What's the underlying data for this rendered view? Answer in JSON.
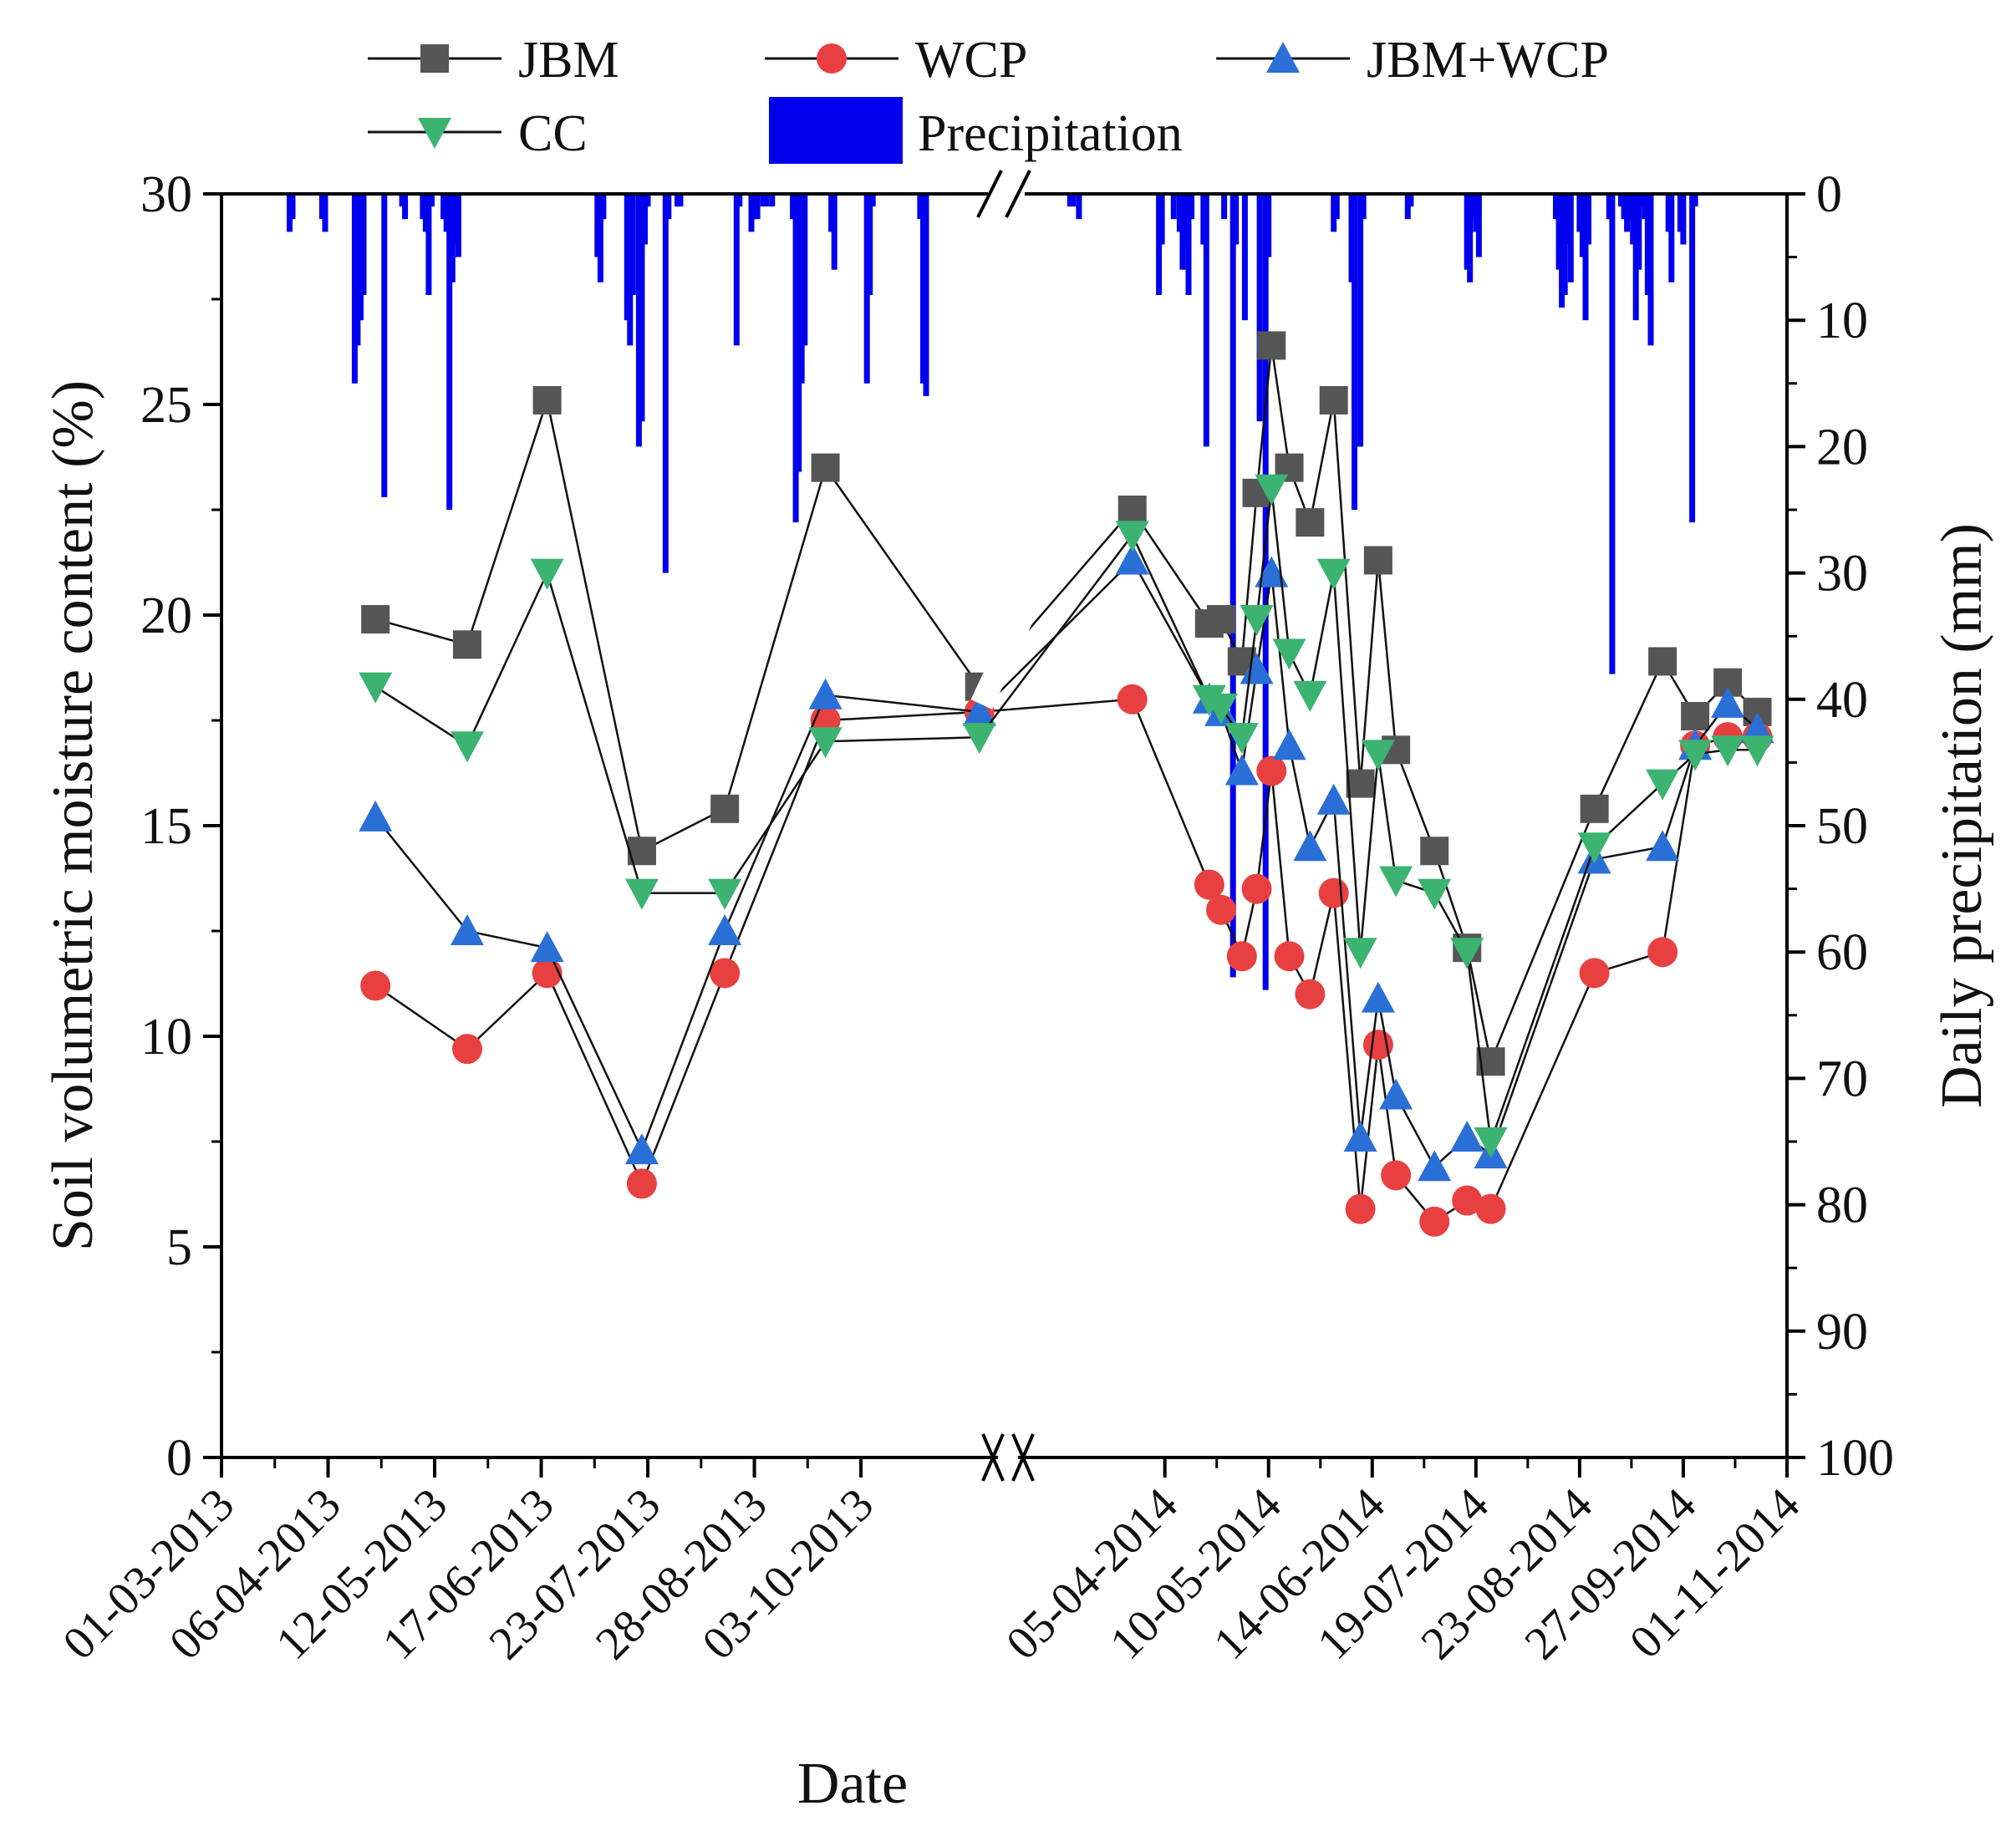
{
  "chart_data": {
    "type": "line",
    "xlabel": "Date",
    "ylabel": "Soil volumetric moisture content (%)",
    "y2label": "Daily precipitation (mm)",
    "ylim": [
      0,
      30
    ],
    "y2lim": [
      0,
      100
    ],
    "y2_inverted": true,
    "yticks": [
      "0",
      "5",
      "10",
      "15",
      "20",
      "25",
      "30"
    ],
    "y2ticks": [
      "0",
      "10",
      "20",
      "30",
      "40",
      "50",
      "60",
      "70",
      "80",
      "90",
      "100"
    ],
    "x_axis_break": true,
    "x_segments": [
      {
        "start": "01-03-2013",
        "end": "18-11-2013"
      },
      {
        "start": "15-02-2014",
        "end": "01-11-2014"
      }
    ],
    "xtick_dates": [
      "01-03-2013",
      "06-04-2013",
      "12-05-2013",
      "17-06-2013",
      "23-07-2013",
      "28-08-2013",
      "03-10-2013",
      "05-04-2014",
      "10-05-2014",
      "14-06-2014",
      "19-07-2014",
      "23-08-2014",
      "27-09-2014",
      "01-11-2014"
    ],
    "legend": [
      "JBM",
      "WCP",
      "JBM+WCP",
      "CC",
      "Precipitation"
    ],
    "series": [
      {
        "name": "JBM",
        "color": "#555555",
        "marker": "square",
        "dates": [
          "22-04-2013",
          "23-05-2013",
          "19-06-2013",
          "21-07-2013",
          "18-08-2013",
          "21-09-2013",
          "12-11-2013",
          "25-03-2014",
          "20-04-2014",
          "24-04-2014",
          "01-05-2014",
          "06-05-2014",
          "11-05-2014",
          "17-05-2014",
          "24-05-2014",
          "01-06-2014",
          "10-06-2014",
          "16-06-2014",
          "22-06-2014",
          "05-07-2014",
          "16-07-2014",
          "24-07-2014",
          "28-08-2014",
          "20-09-2014",
          "01-10-2014",
          "12-10-2014",
          "22-10-2014"
        ],
        "values": [
          19.9,
          19.3,
          25.1,
          14.4,
          15.4,
          23.5,
          18.3,
          22.5,
          19.8,
          19.9,
          18.9,
          22.9,
          26.4,
          23.5,
          22.2,
          25.1,
          16.0,
          21.3,
          16.8,
          14.4,
          12.1,
          9.4,
          15.4,
          18.9,
          17.6,
          18.4,
          17.7
        ]
      },
      {
        "name": "WCP",
        "color": "#e84040",
        "marker": "circle",
        "dates": [
          "22-04-2013",
          "23-05-2013",
          "19-06-2013",
          "21-07-2013",
          "18-08-2013",
          "21-09-2013",
          "12-11-2013",
          "25-03-2014",
          "20-04-2014",
          "24-04-2014",
          "01-05-2014",
          "06-05-2014",
          "11-05-2014",
          "17-05-2014",
          "24-05-2014",
          "01-06-2014",
          "10-06-2014",
          "16-06-2014",
          "22-06-2014",
          "05-07-2014",
          "16-07-2014",
          "24-07-2014",
          "28-08-2014",
          "20-09-2014",
          "01-10-2014",
          "12-10-2014",
          "22-10-2014"
        ],
        "values": [
          11.2,
          9.7,
          11.5,
          6.5,
          11.5,
          17.5,
          17.7,
          18.0,
          13.6,
          13.0,
          11.9,
          13.5,
          16.3,
          11.9,
          11.0,
          13.4,
          5.9,
          9.8,
          6.7,
          5.6,
          6.1,
          5.9,
          11.5,
          12.0,
          16.9,
          17.1,
          17.1
        ]
      },
      {
        "name": "JBM+WCP",
        "color": "#2a6fd6",
        "marker": "triangle-up",
        "dates": [
          "22-04-2013",
          "23-05-2013",
          "19-06-2013",
          "21-07-2013",
          "18-08-2013",
          "21-09-2013",
          "12-11-2013",
          "25-03-2014",
          "20-04-2014",
          "24-04-2014",
          "01-05-2014",
          "06-05-2014",
          "11-05-2014",
          "17-05-2014",
          "24-05-2014",
          "01-06-2014",
          "10-06-2014",
          "16-06-2014",
          "22-06-2014",
          "05-07-2014",
          "16-07-2014",
          "24-07-2014",
          "28-08-2014",
          "20-09-2014",
          "01-10-2014",
          "12-10-2014",
          "22-10-2014"
        ],
        "values": [
          15.2,
          12.5,
          12.1,
          7.3,
          12.5,
          18.1,
          17.7,
          21.3,
          18.0,
          17.7,
          16.3,
          18.7,
          21.0,
          16.9,
          14.5,
          15.6,
          7.6,
          10.9,
          8.6,
          6.9,
          7.6,
          7.2,
          14.2,
          14.5,
          16.9,
          17.9,
          17.3
        ]
      },
      {
        "name": "CC",
        "color": "#3cb371",
        "marker": "triangle-down",
        "dates": [
          "22-04-2013",
          "23-05-2013",
          "19-06-2013",
          "21-07-2013",
          "18-08-2013",
          "21-09-2013",
          "12-11-2013",
          "25-03-2014",
          "20-04-2014",
          "24-04-2014",
          "01-05-2014",
          "06-05-2014",
          "11-05-2014",
          "17-05-2014",
          "24-05-2014",
          "01-06-2014",
          "10-06-2014",
          "16-06-2014",
          "22-06-2014",
          "05-07-2014",
          "16-07-2014",
          "24-07-2014",
          "28-08-2014",
          "20-09-2014",
          "01-10-2014",
          "12-10-2014",
          "22-10-2014"
        ],
        "values": [
          18.3,
          16.9,
          21.0,
          13.4,
          13.4,
          17.0,
          17.1,
          21.9,
          18.0,
          17.8,
          17.1,
          19.9,
          23.0,
          19.1,
          18.1,
          21.0,
          12.0,
          16.7,
          13.7,
          13.4,
          12.0,
          7.5,
          14.5,
          16.0,
          16.7,
          16.8,
          16.8
        ]
      }
    ],
    "precipitation": {
      "name": "Precipitation",
      "color": "#0000ee",
      "unit": "mm",
      "dates": [
        "24-03-2013",
        "25-03-2013",
        "04-04-2013",
        "05-04-2013",
        "15-04-2013",
        "16-04-2013",
        "17-04-2013",
        "18-04-2013",
        "25-04-2013",
        "01-05-2013",
        "02-05-2013",
        "08-05-2013",
        "09-05-2013",
        "10-05-2013",
        "11-05-2013",
        "15-05-2013",
        "16-05-2013",
        "17-05-2013",
        "18-05-2013",
        "19-05-2013",
        "20-05-2013",
        "06-07-2013",
        "07-07-2013",
        "08-07-2013",
        "16-07-2013",
        "17-07-2013",
        "18-07-2013",
        "20-07-2013",
        "21-07-2013",
        "22-07-2013",
        "23-07-2013",
        "29-07-2013",
        "30-07-2013",
        "02-08-2013",
        "03-08-2013",
        "22-08-2013",
        "23-08-2013",
        "27-08-2013",
        "28-08-2013",
        "29-08-2013",
        "31-08-2013",
        "01-09-2013",
        "03-09-2013",
        "10-09-2013",
        "11-09-2013",
        "12-09-2013",
        "13-09-2013",
        "14-09-2013",
        "23-09-2013",
        "24-09-2013",
        "05-10-2013",
        "06-10-2013",
        "07-10-2013",
        "23-10-2013",
        "24-10-2013",
        "25-10-2013",
        "04-03-2014",
        "05-03-2014",
        "07-03-2014",
        "03-04-2014",
        "04-04-2014",
        "08-04-2014",
        "10-04-2014",
        "11-04-2014",
        "12-04-2014",
        "13-04-2014",
        "14-04-2014",
        "18-04-2014",
        "19-04-2014",
        "25-04-2014",
        "28-04-2014",
        "29-04-2014",
        "02-05-2014",
        "07-05-2014",
        "09-05-2014",
        "10-05-2014",
        "01-06-2014",
        "02-06-2014",
        "07-06-2014",
        "08-06-2014",
        "10-06-2014",
        "11-06-2014",
        "26-06-2014",
        "27-06-2014",
        "16-07-2014",
        "17-07-2014",
        "18-07-2014",
        "19-07-2014",
        "20-07-2014",
        "15-08-2014",
        "16-08-2014",
        "17-08-2014",
        "18-08-2014",
        "19-08-2014",
        "20-08-2014",
        "23-08-2014",
        "24-08-2014",
        "25-08-2014",
        "26-08-2014",
        "02-09-2014",
        "03-09-2014",
        "06-09-2014",
        "07-09-2014",
        "08-09-2014",
        "09-09-2014",
        "10-09-2014",
        "11-09-2014",
        "12-09-2014",
        "13-09-2014",
        "14-09-2014",
        "15-09-2014",
        "16-09-2014",
        "22-09-2014",
        "23-09-2014",
        "26-09-2014",
        "27-09-2014",
        "30-09-2014",
        "01-10-2014"
      ],
      "values": [
        3,
        2,
        2,
        3,
        15,
        12,
        10,
        8,
        24,
        1,
        2,
        2,
        3,
        8,
        1,
        2,
        3,
        25,
        7,
        4,
        5,
        5,
        7,
        2,
        10,
        12,
        8,
        20,
        18,
        4,
        1,
        30,
        2,
        1,
        1,
        12,
        1,
        3,
        2,
        2,
        1,
        1,
        1,
        2,
        26,
        22,
        15,
        12,
        3,
        6,
        15,
        8,
        1,
        2,
        15,
        16,
        1,
        1,
        2,
        8,
        4,
        2,
        3,
        6,
        4,
        8,
        2,
        4,
        20,
        2,
        62,
        4,
        10,
        18,
        63,
        5,
        3,
        2,
        7,
        25,
        20,
        2,
        2,
        1,
        6,
        7,
        2,
        3,
        5,
        2,
        6,
        9,
        8,
        4,
        7,
        3,
        5,
        10,
        4,
        2,
        38,
        1,
        2,
        3,
        2,
        4,
        10,
        6,
        1,
        2,
        8,
        12,
        3,
        7,
        3,
        4,
        26,
        1
      ]
    }
  }
}
